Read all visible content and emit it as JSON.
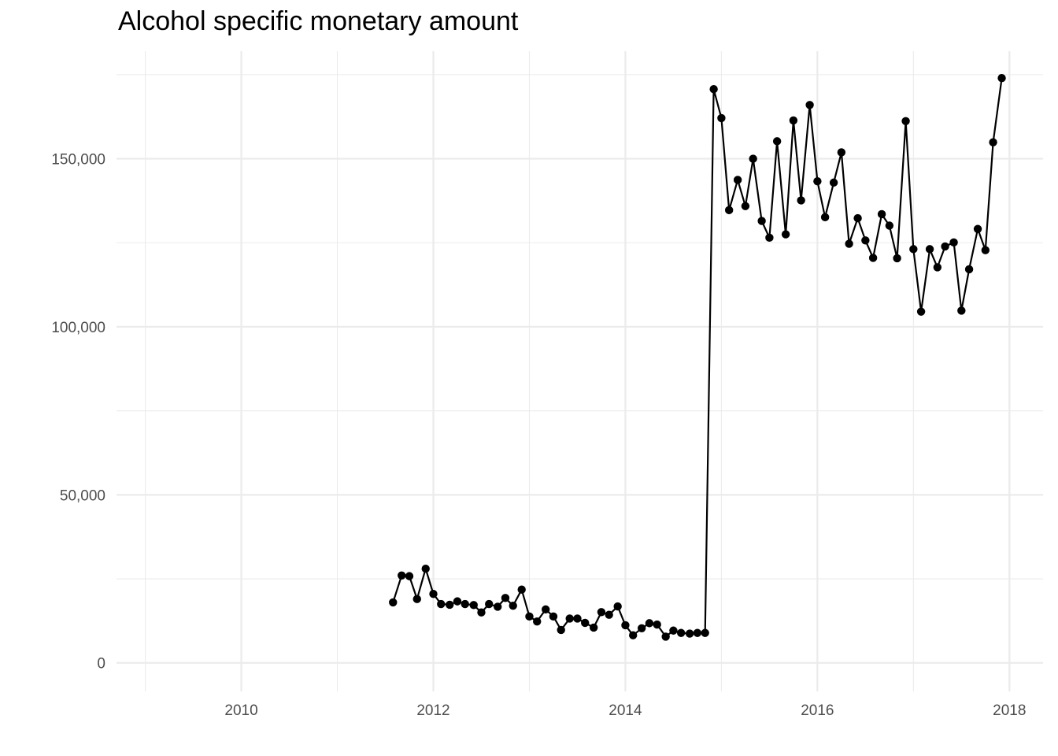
{
  "chart_data": {
    "type": "line",
    "title": "Alcohol specific monetary amount",
    "xlabel": "",
    "ylabel": "",
    "xlim": [
      2008.7,
      2018.35
    ],
    "ylim": [
      -8500,
      182000
    ],
    "x_ticks": [
      2010,
      2012,
      2014,
      2016,
      2018
    ],
    "x_tick_labels": [
      "2010",
      "2012",
      "2014",
      "2016",
      "2018"
    ],
    "y_ticks": [
      0,
      50000,
      100000,
      150000
    ],
    "y_tick_labels": [
      "0",
      "50,000",
      "100,000",
      "150,000"
    ],
    "grid": true,
    "legend": "none",
    "markers": true,
    "line_color": "#000000",
    "series": [
      {
        "x": [
          2011.58,
          2011.67,
          2011.75,
          2011.83,
          2011.92,
          2012.0,
          2012.08,
          2012.17,
          2012.25,
          2012.33,
          2012.42,
          2012.5,
          2012.58,
          2012.67,
          2012.75,
          2012.83,
          2012.92,
          2013.0,
          2013.08,
          2013.17,
          2013.25,
          2013.33,
          2013.42,
          2013.5,
          2013.58,
          2013.67,
          2013.75,
          2013.83,
          2013.92,
          2014.0,
          2014.08,
          2014.17,
          2014.25,
          2014.33,
          2014.42,
          2014.5,
          2014.58,
          2014.67,
          2014.75,
          2014.83,
          2014.92,
          2015.0,
          2015.08,
          2015.17,
          2015.25,
          2015.33,
          2015.42,
          2015.5,
          2015.58,
          2015.67,
          2015.75,
          2015.83,
          2015.92,
          2016.0,
          2016.08,
          2016.17,
          2016.25,
          2016.33,
          2016.42,
          2016.5,
          2016.58,
          2016.67,
          2016.75,
          2016.83,
          2016.92,
          2017.0,
          2017.08,
          2017.17,
          2017.25,
          2017.33,
          2017.42,
          2017.5,
          2017.58,
          2017.67,
          2017.75,
          2017.83,
          2017.92
        ],
        "values": [
          18000,
          26000,
          25800,
          19000,
          28000,
          20500,
          17500,
          17300,
          18300,
          17500,
          17200,
          15000,
          17500,
          16700,
          19300,
          17000,
          21800,
          13800,
          12300,
          15900,
          13800,
          9800,
          13200,
          13200,
          11900,
          10500,
          15100,
          14300,
          16800,
          11200,
          8200,
          10300,
          11800,
          11400,
          7800,
          9600,
          8900,
          8700,
          8900,
          8900,
          170700,
          162100,
          134700,
          143700,
          135900,
          150000,
          131500,
          126500,
          155200,
          127500,
          161400,
          137600,
          166000,
          143300,
          132600,
          142900,
          151900,
          124700,
          132300,
          125700,
          120500,
          133500,
          130100,
          120400,
          161200,
          123100,
          104500,
          123100,
          117700,
          123900,
          125100,
          104800,
          117100,
          129100,
          122800,
          154900,
          174000
        ]
      }
    ]
  }
}
